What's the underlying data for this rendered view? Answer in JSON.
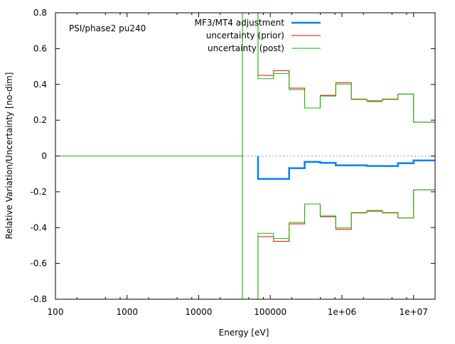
{
  "chart_data": {
    "type": "line",
    "title": "PSI/phase2 pu240",
    "xlabel": "Energy [eV]",
    "ylabel": "Relative Variation/Uncertainty [no-dim]",
    "xscale": "log",
    "xlim": [
      100,
      20000000
    ],
    "ylim": [
      -0.8,
      0.8
    ],
    "xticks": [
      {
        "value": 100,
        "label": "100"
      },
      {
        "value": 1000,
        "label": "1000"
      },
      {
        "value": 10000,
        "label": "10000"
      },
      {
        "value": 100000,
        "label": "100000"
      },
      {
        "value": 1000000,
        "label": "1e+06"
      },
      {
        "value": 10000000,
        "label": "1e+07"
      }
    ],
    "yticks": [
      {
        "value": 0.8,
        "label": "0.8"
      },
      {
        "value": 0.6,
        "label": "0.6"
      },
      {
        "value": 0.4,
        "label": "0.4"
      },
      {
        "value": 0.2,
        "label": "0.2"
      },
      {
        "value": 0,
        "label": "0"
      },
      {
        "value": -0.2,
        "label": "-0.2"
      },
      {
        "value": -0.4,
        "label": "-0.4"
      },
      {
        "value": -0.6,
        "label": "-0.6"
      },
      {
        "value": -0.8,
        "label": "-0.8"
      }
    ],
    "legend_position": "top-right",
    "bin_edges": [
      1,
      40868,
      67379,
      111090,
      183160,
      301970,
      497870,
      820850,
      1353400,
      2231300,
      3678800,
      6065300,
      10000000,
      20000000
    ],
    "series": [
      {
        "name": "MF3/MT4 adjustment",
        "color": "#0080ff",
        "style": "step",
        "values": [
          null,
          null,
          -0.128,
          -0.128,
          -0.068,
          -0.033,
          -0.038,
          -0.052,
          -0.052,
          -0.056,
          -0.056,
          -0.04,
          -0.025
        ]
      },
      {
        "name": "uncertainty (prior)",
        "color": "#ff0000",
        "style": "step-symmetric",
        "values": [
          0,
          1.0,
          0.45,
          0.477,
          0.379,
          0.268,
          0.339,
          0.41,
          0.318,
          0.308,
          0.318,
          0.346,
          0.189
        ]
      },
      {
        "name": "uncertainty (post)",
        "color": "#00c000",
        "style": "step-symmetric",
        "values": [
          0,
          1.0,
          0.432,
          0.461,
          0.371,
          0.268,
          0.335,
          0.402,
          0.316,
          0.304,
          0.316,
          0.346,
          0.189
        ]
      }
    ]
  }
}
